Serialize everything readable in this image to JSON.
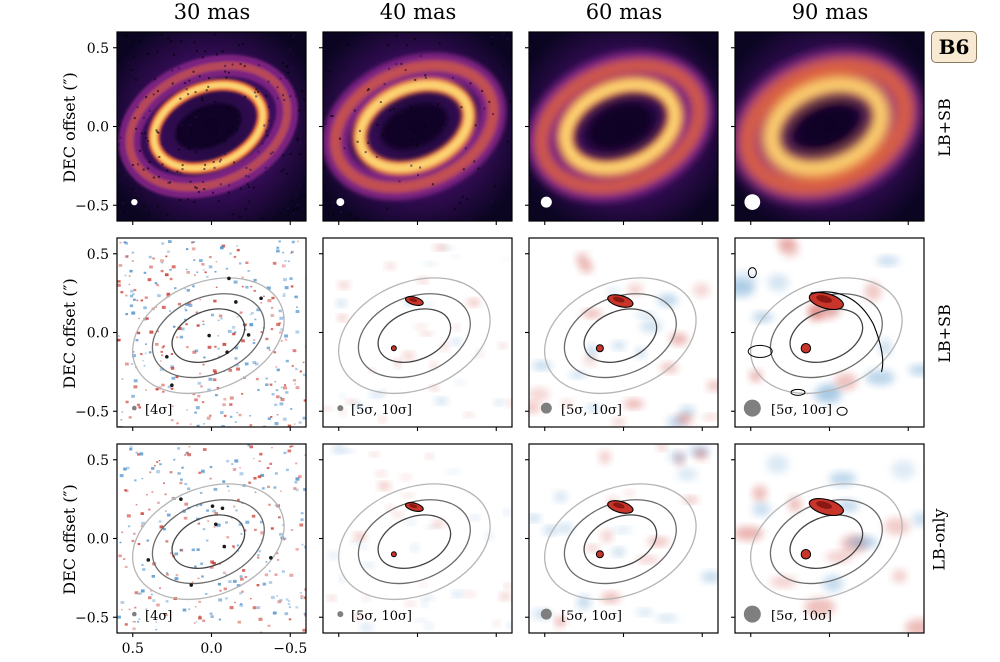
{
  "figure": {
    "columns": [
      "30 mas",
      "40 mas",
      "60 mas",
      "90 mas"
    ],
    "band_badge": "B6",
    "rows": [
      {
        "label": "LB+SB",
        "kind": "image",
        "legends": [
          "",
          "",
          "",
          ""
        ]
      },
      {
        "label": "LB+SB",
        "kind": "residual",
        "legends": [
          "[4σ]",
          "[5σ, 10σ]",
          "[5σ, 10σ]",
          "[5σ, 10σ]"
        ]
      },
      {
        "label": "LB-only",
        "kind": "residual",
        "legends": [
          "[4σ]",
          "[5σ, 10σ]",
          "[5σ, 10σ]",
          "[5σ, 10σ]"
        ]
      }
    ],
    "y_axis_label": "DEC offset  (″)",
    "y_ticks": [
      "0.5",
      "0.0",
      "−0.5"
    ],
    "x_ticks": [
      "0.5",
      "0.0",
      "−0.5"
    ],
    "beam_sizes_mas": [
      30,
      40,
      60,
      90
    ],
    "colors": {
      "ring_bright": "#fcd472",
      "ring_mid": "#e8683a",
      "ring_dim": "#7e2482",
      "background_dark": "#0b0522",
      "positive_residual": "#c8352b",
      "negative_residual": "#4a8ec9",
      "beam": "#7f7f7f"
    }
  }
}
